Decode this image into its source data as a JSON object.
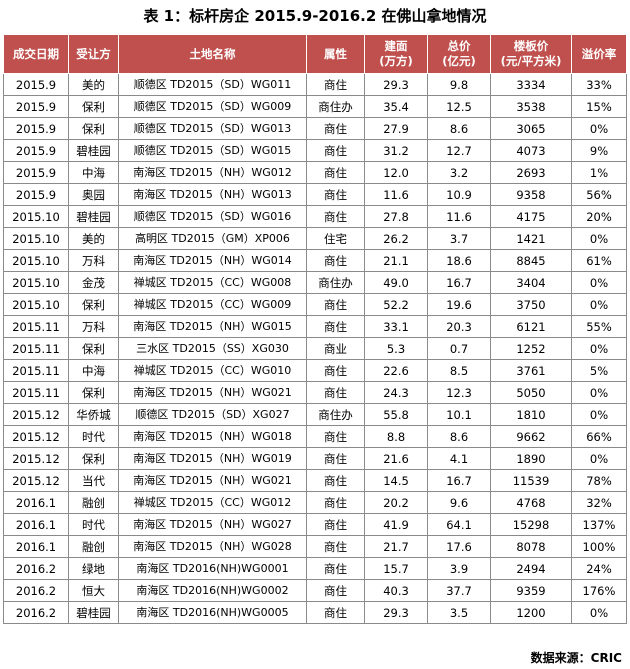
{
  "title": "表 1：标杆房企 2015.9-2016.2 在佛山拿地情况",
  "columns": [
    "成交日期",
    "受让方",
    "土地名称",
    "属性",
    "建面\n(万方)",
    "总价\n(亿元)",
    "楼板价\n(元/平方米)",
    "溢价率"
  ],
  "rows": [
    [
      "2015.9",
      "美的",
      "顺德区 TD2015（SD）WG011",
      "商住",
      "29.3",
      "9.8",
      "3334",
      "33%"
    ],
    [
      "2015.9",
      "保利",
      "顺德区 TD2015（SD）WG009",
      "商住办",
      "35.4",
      "12.5",
      "3538",
      "15%"
    ],
    [
      "2015.9",
      "保利",
      "顺德区 TD2015（SD）WG013",
      "商住",
      "27.9",
      "8.6",
      "3065",
      "0%"
    ],
    [
      "2015.9",
      "碧桂园",
      "顺德区 TD2015（SD）WG015",
      "商住",
      "31.2",
      "12.7",
      "4073",
      "9%"
    ],
    [
      "2015.9",
      "中海",
      "南海区 TD2015（NH）WG012",
      "商住",
      "12.0",
      "3.2",
      "2693",
      "1%"
    ],
    [
      "2015.9",
      "奥园",
      "南海区 TD2015（NH）WG013",
      "商住",
      "11.6",
      "10.9",
      "9358",
      "56%"
    ],
    [
      "2015.10",
      "碧桂园",
      "顺德区 TD2015（SD）WG016",
      "商住",
      "27.8",
      "11.6",
      "4175",
      "20%"
    ],
    [
      "2015.10",
      "美的",
      "高明区 TD2015（GM）XP006",
      "住宅",
      "26.2",
      "3.7",
      "1421",
      "0%"
    ],
    [
      "2015.10",
      "万科",
      "南海区 TD2015（NH）WG014",
      "商住",
      "21.1",
      "18.6",
      "8845",
      "61%"
    ],
    [
      "2015.10",
      "金茂",
      "禅城区 TD2015（CC）WG008",
      "商住办",
      "49.0",
      "16.7",
      "3404",
      "0%"
    ],
    [
      "2015.10",
      "保利",
      "禅城区 TD2015（CC）WG009",
      "商住",
      "52.2",
      "19.6",
      "3750",
      "0%"
    ],
    [
      "2015.11",
      "万科",
      "南海区 TD2015（NH）WG015",
      "商住",
      "33.1",
      "20.3",
      "6121",
      "55%"
    ],
    [
      "2015.11",
      "保利",
      "三水区 TD2015（SS）XG030",
      "商业",
      "5.3",
      "0.7",
      "1252",
      "0%"
    ],
    [
      "2015.11",
      "中海",
      "禅城区 TD2015（CC）WG010",
      "商住",
      "22.6",
      "8.5",
      "3761",
      "5%"
    ],
    [
      "2015.11",
      "保利",
      "南海区 TD2015（NH）WG021",
      "商住",
      "24.3",
      "12.3",
      "5050",
      "0%"
    ],
    [
      "2015.12",
      "华侨城",
      "顺德区 TD2015（SD）XG027",
      "商住办",
      "55.8",
      "10.1",
      "1810",
      "0%"
    ],
    [
      "2015.12",
      "时代",
      "南海区 TD2015（NH）WG018",
      "商住",
      "8.8",
      "8.6",
      "9662",
      "66%"
    ],
    [
      "2015.12",
      "保利",
      "南海区 TD2015（NH）WG019",
      "商住",
      "21.6",
      "4.1",
      "1890",
      "0%"
    ],
    [
      "2015.12",
      "当代",
      "南海区 TD2015（NH）WG021",
      "商住",
      "14.5",
      "16.7",
      "11539",
      "78%"
    ],
    [
      "2016.1",
      "融创",
      "禅城区 TD2015（CC）WG012",
      "商住",
      "20.2",
      "9.6",
      "4768",
      "32%"
    ],
    [
      "2016.1",
      "时代",
      "南海区 TD2015（NH）WG027",
      "商住",
      "41.9",
      "64.1",
      "15298",
      "137%"
    ],
    [
      "2016.1",
      "融创",
      "南海区 TD2015（NH）WG028",
      "商住",
      "21.7",
      "17.6",
      "8078",
      "100%"
    ],
    [
      "2016.2",
      "绿地",
      "南海区 TD2016(NH)WG0001",
      "商住",
      "15.7",
      "3.9",
      "2494",
      "24%"
    ],
    [
      "2016.2",
      "恒大",
      "南海区 TD2016(NH)WG0002",
      "商住",
      "40.3",
      "37.7",
      "9359",
      "176%"
    ],
    [
      "2016.2",
      "碧桂园",
      "南海区 TD2016(NH)WG0005",
      "商住",
      "29.3",
      "3.5",
      "1200",
      "0%"
    ]
  ],
  "source": "数据来源：CRIC",
  "colors": {
    "header_bg": "#c0504d",
    "header_text": "#ffffff",
    "grid": "#8a8a8a"
  }
}
